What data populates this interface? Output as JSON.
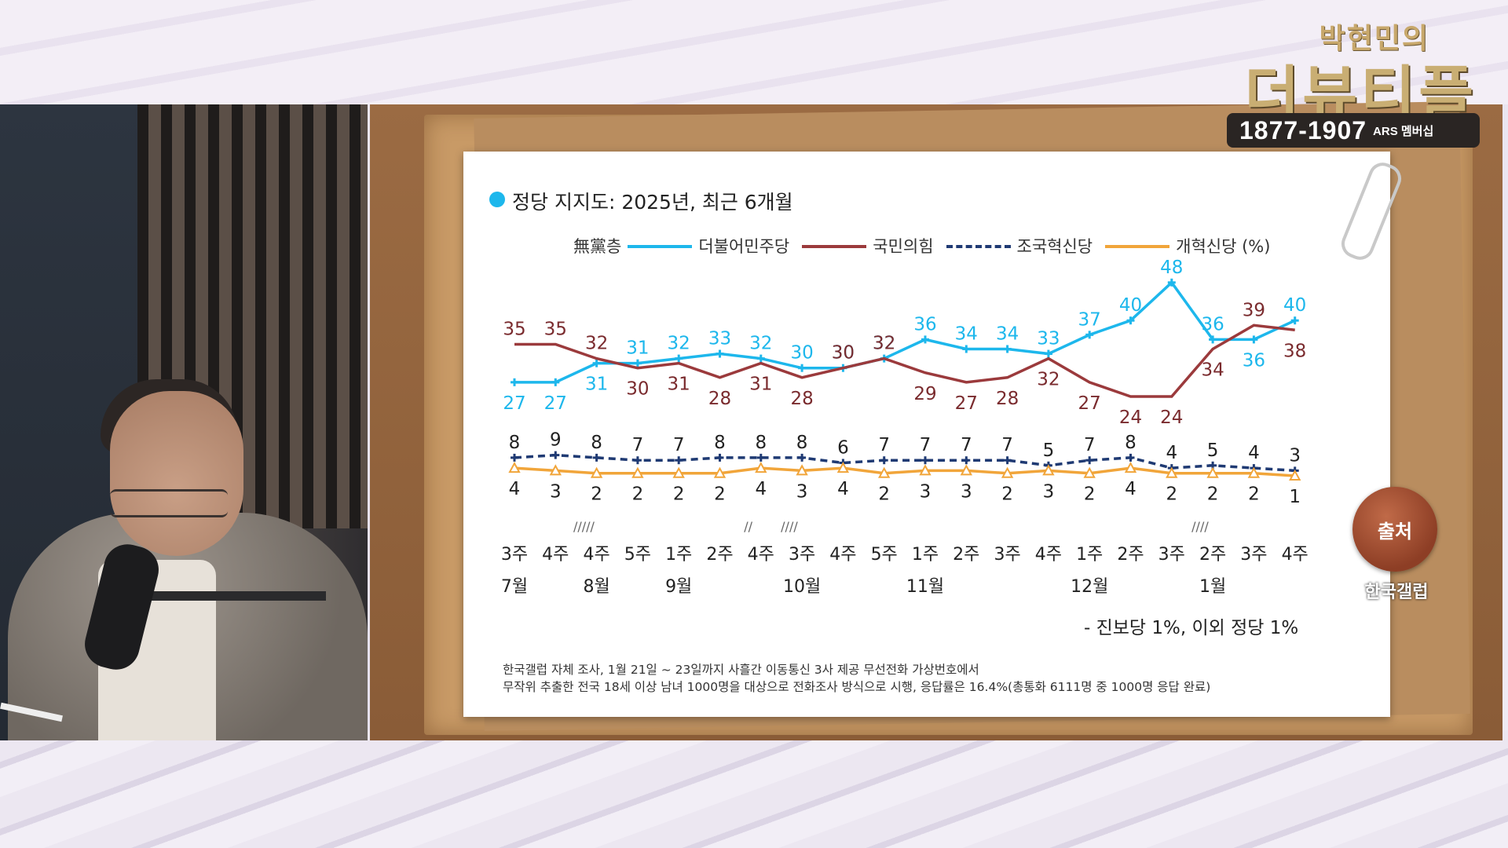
{
  "logo": {
    "top": "박현민의",
    "main": "더뷰티플"
  },
  "phone": {
    "number": "1877-1907",
    "suffix": "ARS 멤버십"
  },
  "source": {
    "label": "출처",
    "name": "한국갤럽"
  },
  "chart_data": {
    "type": "line",
    "title": "정당 지지도: 2025년, 최근 6개월",
    "legend": {
      "prefix": "無黨층",
      "items": [
        "더불어민주당",
        "국민의힘",
        "조국혁신당",
        "개혁신당 (%)"
      ]
    },
    "colors": {
      "dem": "#1db7ec",
      "ppp": "#9b3a3c",
      "rebuild": "#1f3a73",
      "reform": "#f1a53a"
    },
    "categories": [
      "3주",
      "4주",
      "4주",
      "5주",
      "1주",
      "2주",
      "4주",
      "3주",
      "4주",
      "5주",
      "1주",
      "2주",
      "3주",
      "4주",
      "1주",
      "2주",
      "3주",
      "2주",
      "3주",
      "4주"
    ],
    "months": [
      {
        "label": "7월",
        "index": 0
      },
      {
        "label": "8월",
        "index": 2
      },
      {
        "label": "9월",
        "index": 4
      },
      {
        "label": "10월",
        "index": 7
      },
      {
        "label": "11월",
        "index": 10
      },
      {
        "label": "12월",
        "index": 14
      },
      {
        "label": "1월",
        "index": 17
      }
    ],
    "gaps": [
      {
        "after": 1,
        "mark": "/////"
      },
      {
        "after": 5,
        "mark": "//"
      },
      {
        "after": 6,
        "mark": "////"
      },
      {
        "after": 16,
        "mark": "////"
      }
    ],
    "series": [
      {
        "name": "더불어민주당",
        "key": "dem",
        "values": [
          27,
          27,
          31,
          31,
          32,
          33,
          32,
          30,
          30,
          32,
          36,
          34,
          34,
          33,
          37,
          40,
          48,
          36,
          36,
          40
        ]
      },
      {
        "name": "국민의힘",
        "key": "ppp",
        "values": [
          35,
          35,
          32,
          30,
          31,
          28,
          31,
          28,
          30,
          32,
          29,
          27,
          28,
          32,
          27,
          24,
          24,
          34,
          39,
          38
        ]
      },
      {
        "name": "조국혁신당",
        "key": "rebuild",
        "values": [
          8,
          9,
          8,
          7,
          7,
          8,
          8,
          8,
          6,
          7,
          7,
          7,
          7,
          5,
          7,
          8,
          4,
          5,
          4,
          3
        ]
      },
      {
        "name": "개혁신당",
        "key": "reform",
        "values": [
          4,
          3,
          2,
          2,
          2,
          2,
          4,
          3,
          4,
          2,
          3,
          3,
          2,
          3,
          2,
          4,
          2,
          2,
          2,
          1
        ]
      }
    ],
    "dem_labels_above": [
      false,
      false,
      false,
      true,
      true,
      true,
      true,
      true,
      true,
      true,
      true,
      true,
      true,
      true,
      true,
      true,
      true,
      true,
      false,
      true
    ],
    "note": "- 진보당 1%, 이외 정당 1%",
    "footnote": [
      "한국갤럽 자체 조사, 1월 21일 ~ 23일까지 사흘간 이동통신 3사 제공 무선전화 가상번호에서",
      "무작위 추출한 전국 18세 이상 남녀 1000명을 대상으로 전화조사 방식으로 시행, 응답률은 16.4%(총통화 6111명 중 1000명 응답 완료)"
    ]
  }
}
